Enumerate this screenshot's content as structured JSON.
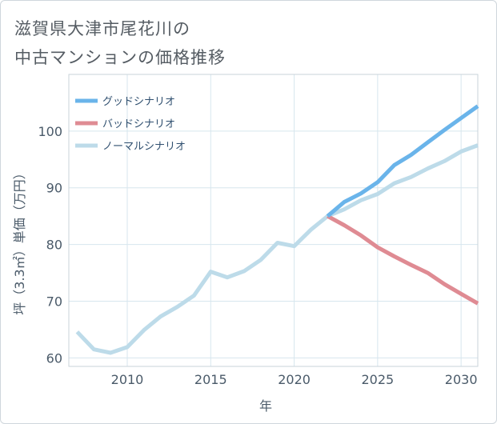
{
  "chart_data": {
    "type": "line",
    "title": [
      "滋賀県大津市尾花川の",
      "中古マンションの価格推移"
    ],
    "xlabel": "年",
    "ylabel": "坪（3.3㎡）単価（万円）",
    "xlim": [
      2006.5,
      2031
    ],
    "ylim": [
      58.5,
      110
    ],
    "xticks": [
      2010,
      2015,
      2020,
      2025,
      2030
    ],
    "yticks": [
      60,
      70,
      80,
      90,
      100
    ],
    "grid": true,
    "legend_position": "top-left",
    "series": [
      {
        "name": "グッドシナリオ",
        "color": "#6ab4ea",
        "x": [
          2022,
          2023,
          2024,
          2025,
          2026,
          2027,
          2028,
          2029,
          2030,
          2031
        ],
        "y": [
          85.0,
          87.5,
          89.0,
          91.0,
          94.0,
          95.8,
          98.0,
          100.2,
          102.3,
          104.4
        ]
      },
      {
        "name": "バッドシナリオ",
        "color": "#df8b93",
        "x": [
          2022,
          2023,
          2024,
          2025,
          2026,
          2027,
          2028,
          2029,
          2030,
          2031
        ],
        "y": [
          85.0,
          83.4,
          81.6,
          79.5,
          77.9,
          76.4,
          75.0,
          73.0,
          71.3,
          69.6
        ]
      },
      {
        "name": "ノーマルシナリオ",
        "color": "#bddbe9",
        "x": [
          2007,
          2008,
          2009,
          2010,
          2011,
          2012,
          2013,
          2014,
          2015,
          2016,
          2017,
          2018,
          2019,
          2020,
          2021,
          2022,
          2023,
          2024,
          2025,
          2026,
          2027,
          2028,
          2029,
          2030,
          2031
        ],
        "y": [
          64.6,
          61.5,
          60.9,
          61.9,
          64.9,
          67.3,
          69.0,
          71.0,
          75.2,
          74.2,
          75.3,
          77.3,
          80.3,
          79.7,
          82.6,
          85.0,
          86.2,
          87.8,
          88.9,
          90.8,
          91.9,
          93.4,
          94.7,
          96.4,
          97.5
        ]
      }
    ]
  }
}
